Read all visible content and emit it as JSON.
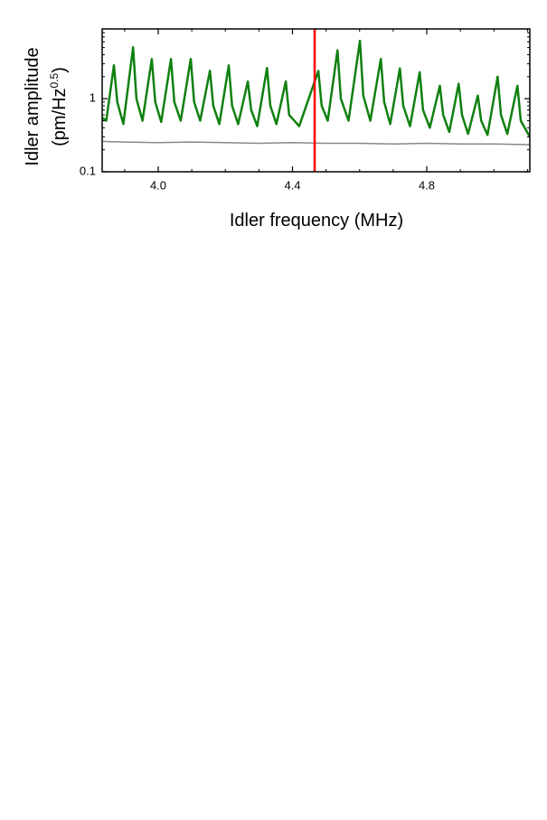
{
  "chart_data": {
    "type": "line",
    "x_label": "Idler frequency (MHz)",
    "y_label": "Idler amplitude",
    "y_units_base": "(pm/Hz",
    "y_units_sup": "0.5",
    "y_units_end": ")",
    "log_y": true,
    "xlim": [
      3.833,
      5.107
    ],
    "ylim": [
      0.1,
      9
    ],
    "xticks": [
      {
        "value": 4,
        "label": "4.0"
      },
      4.4,
      4.8
    ],
    "xminor": [
      3.9,
      4.1,
      4.2,
      4.3,
      4.5,
      4.6,
      4.7,
      4.9,
      5.0,
      5.1
    ],
    "yticks": [
      0.1,
      1
    ],
    "yminor": [
      0.2,
      0.3,
      0.4,
      0.5,
      0.6,
      0.7,
      0.8,
      0.9,
      2,
      3,
      4,
      5,
      6,
      7,
      8
    ],
    "vline": 4.466,
    "vline_color": "#ff0000",
    "series": [
      {
        "color": "#108010",
        "width": 2.5,
        "x": [
          3.833,
          3.845,
          3.868,
          3.878,
          3.896,
          3.925,
          3.935,
          3.953,
          3.981,
          3.991,
          4.009,
          4.038,
          4.048,
          4.067,
          4.097,
          4.107,
          4.125,
          4.154,
          4.164,
          4.182,
          4.21,
          4.22,
          4.238,
          4.267,
          4.277,
          4.295,
          4.324,
          4.334,
          4.352,
          4.38,
          4.39,
          4.42,
          4.477,
          4.487,
          4.505,
          4.534,
          4.544,
          4.567,
          4.601,
          4.611,
          4.632,
          4.663,
          4.673,
          4.691,
          4.72,
          4.73,
          4.75,
          4.779,
          4.789,
          4.809,
          4.839,
          4.849,
          4.867,
          4.895,
          4.905,
          4.923,
          4.952,
          4.962,
          4.981,
          5.011,
          5.021,
          5.04,
          5.07,
          5.08,
          5.107
        ],
        "values": [
          0.55,
          0.5,
          2.86,
          0.9,
          0.45,
          5.05,
          1.0,
          0.5,
          3.49,
          0.9,
          0.48,
          3.49,
          0.9,
          0.5,
          3.5,
          0.9,
          0.5,
          2.41,
          0.8,
          0.45,
          2.86,
          0.8,
          0.45,
          1.72,
          0.7,
          0.42,
          2.63,
          0.8,
          0.45,
          1.72,
          0.6,
          0.42,
          2.4,
          0.8,
          0.5,
          4.6,
          1.0,
          0.5,
          6.2,
          1.1,
          0.5,
          3.5,
          0.9,
          0.45,
          2.6,
          0.8,
          0.42,
          2.3,
          0.7,
          0.4,
          1.5,
          0.6,
          0.35,
          1.6,
          0.6,
          0.33,
          1.1,
          0.5,
          0.32,
          2.0,
          0.6,
          0.33,
          1.5,
          0.5,
          0.3
        ]
      },
      {
        "color": "#888888",
        "width": 1.5,
        "x": [
          3.833,
          3.9,
          4.0,
          4.1,
          4.2,
          4.3,
          4.4,
          4.5,
          4.6,
          4.7,
          4.8,
          4.9,
          5.0,
          5.107
        ],
        "values": [
          0.26,
          0.255,
          0.25,
          0.255,
          0.25,
          0.245,
          0.25,
          0.245,
          0.245,
          0.24,
          0.245,
          0.24,
          0.24,
          0.235
        ]
      }
    ]
  }
}
